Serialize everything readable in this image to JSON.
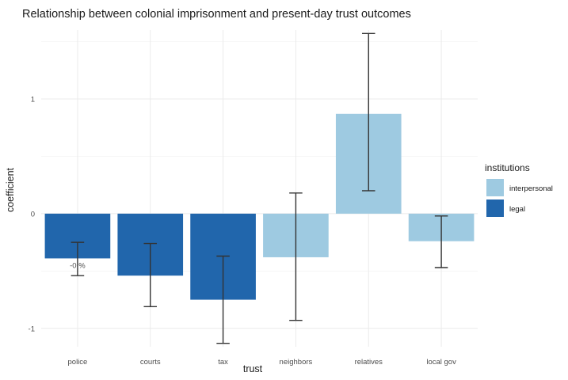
{
  "chart_data": {
    "type": "bar",
    "title": "Relationship between colonial imprisonment and present-day trust outcomes",
    "xlabel": "trust",
    "ylabel": "coefficient",
    "categories": [
      "police",
      "courts",
      "tax",
      "neighbors",
      "relatives",
      "local gov"
    ],
    "values": [
      -0.39,
      -0.54,
      -0.75,
      -0.38,
      0.87,
      -0.24
    ],
    "error_low": [
      -0.54,
      -0.81,
      -1.13,
      -0.93,
      0.2,
      -0.47
    ],
    "error_high": [
      -0.25,
      -0.26,
      -0.37,
      0.18,
      1.57,
      -0.02
    ],
    "group": [
      "legal",
      "legal",
      "legal",
      "interpersonal",
      "interpersonal",
      "interpersonal"
    ],
    "ylim": [
      -1.16,
      1.6
    ],
    "yticks": [
      -1,
      0,
      1
    ],
    "grid": true,
    "legend": {
      "title": "institutions",
      "placement": "right",
      "entries": [
        {
          "label": "interpersonal",
          "color": "#9ecae1"
        },
        {
          "label": "legal",
          "color": "#2166ac"
        }
      ]
    },
    "annotations": [
      {
        "category": "police",
        "text": "-0.%"
      }
    ]
  }
}
